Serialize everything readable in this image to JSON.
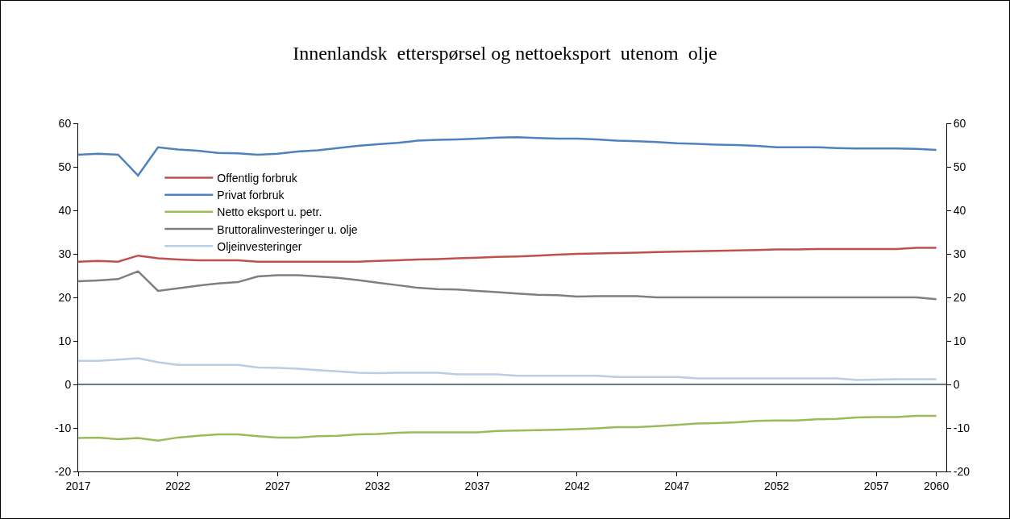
{
  "chart_data": {
    "type": "line",
    "title": "Innenlandsk  etterspørsel og nettoeksport  utenom  olje",
    "x": [
      2017,
      2018,
      2019,
      2020,
      2021,
      2022,
      2023,
      2024,
      2025,
      2026,
      2027,
      2028,
      2029,
      2030,
      2031,
      2032,
      2033,
      2034,
      2035,
      2036,
      2037,
      2038,
      2039,
      2040,
      2041,
      2042,
      2043,
      2044,
      2045,
      2046,
      2047,
      2048,
      2049,
      2050,
      2051,
      2052,
      2053,
      2054,
      2055,
      2056,
      2057,
      2058,
      2059,
      2060
    ],
    "series": [
      {
        "name": "Offentlig forbruk",
        "color": "#c0504d",
        "values": [
          28.2,
          28.4,
          28.2,
          29.6,
          29,
          28.7,
          28.5,
          28.5,
          28.5,
          28.2,
          28.2,
          28.2,
          28.2,
          28.2,
          28.2,
          28.4,
          28.5,
          28.7,
          28.8,
          29,
          29.1,
          29.3,
          29.4,
          29.6,
          29.8,
          30,
          30.1,
          30.2,
          30.3,
          30.4,
          30.5,
          30.6,
          30.7,
          30.8,
          30.9,
          31,
          31,
          31.1,
          31.1,
          31.1,
          31.1,
          31.1,
          31.4,
          31.4
        ]
      },
      {
        "name": "Privat forbruk",
        "color": "#4f81bd",
        "values": [
          52.8,
          53,
          52.8,
          48,
          54.5,
          54,
          53.7,
          53.2,
          53.1,
          52.8,
          53,
          53.5,
          53.8,
          54.3,
          54.8,
          55.2,
          55.5,
          56,
          56.2,
          56.3,
          56.5,
          56.7,
          56.8,
          56.6,
          56.5,
          56.5,
          56.3,
          56,
          55.9,
          55.7,
          55.4,
          55.3,
          55.1,
          55,
          54.8,
          54.5,
          54.5,
          54.5,
          54.3,
          54.2,
          54.2,
          54.2,
          54.1,
          53.9
        ]
      },
      {
        "name": "Netto eksport u. petr.",
        "color": "#9bbb59",
        "values": [
          -12.3,
          -12.2,
          -12.6,
          -12.3,
          -12.9,
          -12.2,
          -11.8,
          -11.5,
          -11.5,
          -11.9,
          -12.2,
          -12.2,
          -11.9,
          -11.8,
          -11.5,
          -11.4,
          -11.1,
          -11,
          -11,
          -11,
          -11,
          -10.7,
          -10.6,
          -10.5,
          -10.4,
          -10.3,
          -10.1,
          -9.8,
          -9.8,
          -9.6,
          -9.3,
          -9,
          -8.9,
          -8.7,
          -8.4,
          -8.3,
          -8.3,
          -8,
          -7.9,
          -7.6,
          -7.5,
          -7.5,
          -7.2,
          -7.2
        ]
      },
      {
        "name": "Bruttoralinvesteringer u. olje",
        "color": "#7f7f7f",
        "values": [
          23.7,
          23.9,
          24.2,
          26,
          21.5,
          22.1,
          22.7,
          23.2,
          23.5,
          24.8,
          25.1,
          25.1,
          24.8,
          24.5,
          24,
          23.4,
          22.8,
          22.2,
          21.9,
          21.8,
          21.5,
          21.2,
          20.9,
          20.6,
          20.5,
          20.2,
          20.3,
          20.3,
          20.3,
          20,
          20,
          20,
          20,
          20,
          20,
          20,
          20,
          20,
          20,
          20,
          20,
          20,
          20,
          19.6
        ]
      },
      {
        "name": "Oljeinvesteringer",
        "color": "#b9cde5",
        "values": [
          5.4,
          5.4,
          5.7,
          6,
          5.1,
          4.5,
          4.5,
          4.5,
          4.5,
          3.9,
          3.8,
          3.6,
          3.3,
          3,
          2.7,
          2.6,
          2.7,
          2.7,
          2.7,
          2.3,
          2.3,
          2.3,
          2,
          2,
          2,
          2,
          2,
          1.7,
          1.7,
          1.7,
          1.7,
          1.4,
          1.4,
          1.4,
          1.4,
          1.4,
          1.4,
          1.4,
          1.4,
          1,
          1.1,
          1.2,
          1.2,
          1.2
        ]
      }
    ],
    "xlim": [
      2017,
      2060.5
    ],
    "xticks": [
      2017,
      2022,
      2027,
      2032,
      2037,
      2042,
      2047,
      2052,
      2057,
      2060
    ],
    "ylim": [
      -20,
      60
    ],
    "yticks": [
      -20,
      -10,
      0,
      10,
      20,
      30,
      40,
      50,
      60
    ],
    "y2lim": [
      -20,
      60
    ],
    "y2ticks": [
      -20,
      -10,
      0,
      10,
      20,
      30,
      40,
      50,
      60
    ],
    "ref_lines": [
      {
        "axis": "y",
        "value": 0,
        "color": "#2f4f5f"
      }
    ],
    "grid": false,
    "legend": "top",
    "marker": "none",
    "line_style": "solid"
  }
}
